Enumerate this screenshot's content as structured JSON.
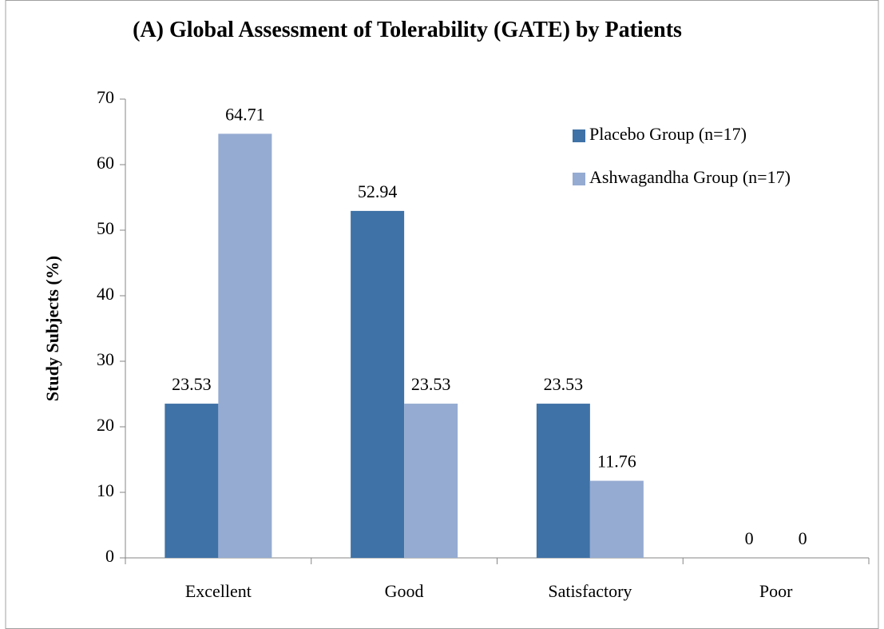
{
  "chart_data": {
    "type": "bar",
    "title": "(A)   Global Assessment of Tolerability (GATE) by Patients",
    "ylabel": "Study Subjects (%)",
    "categories": [
      "Excellent",
      "Good",
      "Satisfactory",
      "Poor"
    ],
    "series": [
      {
        "name": "Placebo Group (n=17)",
        "color": "#3f72a6",
        "values": [
          23.53,
          52.94,
          23.53,
          0
        ]
      },
      {
        "name": "Ashwagandha Group (n=17)",
        "color": "#95abd1",
        "values": [
          64.71,
          23.53,
          11.76,
          0
        ]
      }
    ],
    "ylim": [
      0,
      70
    ],
    "yticks": [
      0,
      10,
      20,
      30,
      40,
      50,
      60,
      70
    ],
    "legend": "upper right"
  }
}
